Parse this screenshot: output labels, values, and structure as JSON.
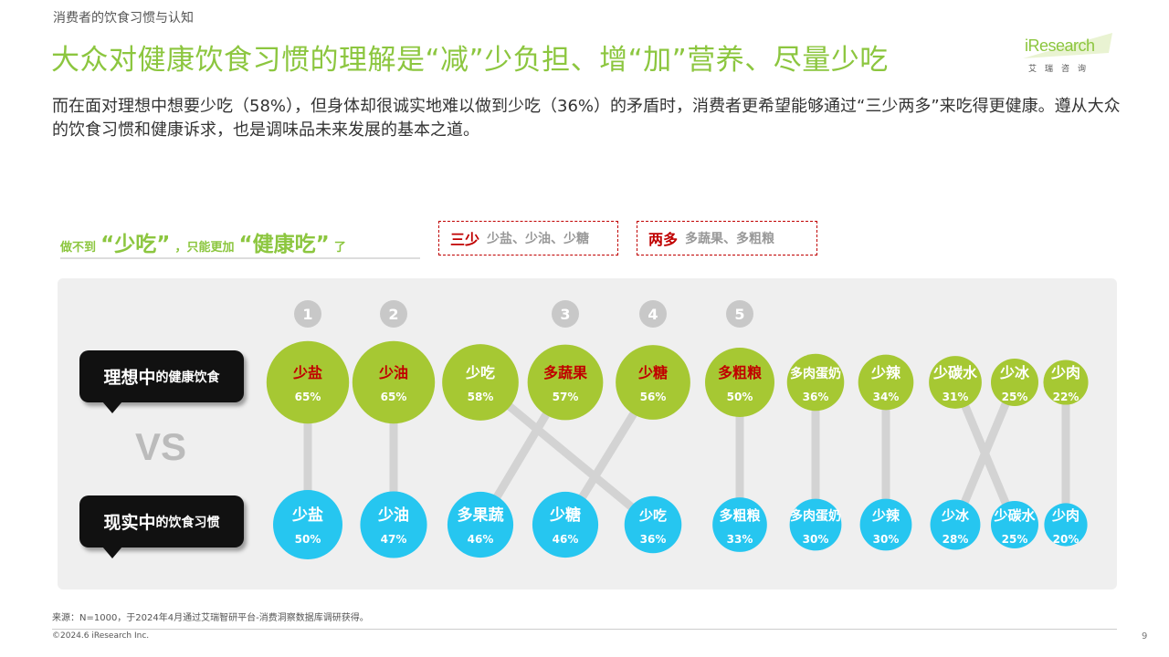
{
  "header": {
    "section_label": "消费者的饮食习惯与认知",
    "title": "大众对健康饮食习惯的理解是“减”少负担、增“加”营养、尽量少吃",
    "logo_word": "iResearch",
    "logo_sub": "艾瑞咨询"
  },
  "intro": "而在面对理想中想要少吃（58%），但身体却很诚实地难以做到少吃（36%）的矛盾时，消费者更希望能够通过“三少两多”来吃得更健康。遵从大众的饮食习惯和健康诉求，也是调味品未来发展的基本之道。",
  "tagline": {
    "part1": "做不到",
    "quote1": "“少吃”",
    "part2": "，只能更加",
    "quote2": "“健康吃”",
    "part3": "了"
  },
  "three_less": {
    "key": "三少",
    "items": "少盐、少油、少糖"
  },
  "two_more": {
    "key": "两多",
    "items": "多蔬果、多粗粮"
  },
  "row_labels": {
    "ideal_big": "理想中",
    "ideal_small": "的健康饮食",
    "real_big": "现实中",
    "real_small": "的饮食习惯",
    "vs": "VS"
  },
  "chart_data": {
    "type": "bump",
    "series": [
      {
        "name": "理想中的健康饮食",
        "items": [
          {
            "label": "少盐",
            "value": 65,
            "display": "65%",
            "rank": "1",
            "highlight": true
          },
          {
            "label": "少油",
            "value": 65,
            "display": "65%",
            "rank": "2",
            "highlight": true
          },
          {
            "label": "少吃",
            "value": 58,
            "display": "58%",
            "rank": "",
            "highlight": false
          },
          {
            "label": "多蔬果",
            "value": 57,
            "display": "57%",
            "rank": "3",
            "highlight": true
          },
          {
            "label": "少糖",
            "value": 56,
            "display": "56%",
            "rank": "4",
            "highlight": true
          },
          {
            "label": "多粗粮",
            "value": 50,
            "display": "50%",
            "rank": "5",
            "highlight": true
          },
          {
            "label": "多肉蛋奶",
            "value": 36,
            "display": "36%",
            "rank": "",
            "highlight": false
          },
          {
            "label": "少辣",
            "value": 34,
            "display": "34%",
            "rank": "",
            "highlight": false
          },
          {
            "label": "少碳水",
            "value": 31,
            "display": "31%",
            "rank": "",
            "highlight": false
          },
          {
            "label": "少冰",
            "value": 25,
            "display": "25%",
            "rank": "",
            "highlight": false
          },
          {
            "label": "少肉",
            "value": 22,
            "display": "22%",
            "rank": "",
            "highlight": false
          }
        ]
      },
      {
        "name": "现实中的饮食习惯",
        "items": [
          {
            "label": "少盐",
            "value": 50,
            "display": "50%"
          },
          {
            "label": "少油",
            "value": 47,
            "display": "47%"
          },
          {
            "label": "多果蔬",
            "value": 46,
            "display": "46%"
          },
          {
            "label": "少糖",
            "value": 46,
            "display": "46%"
          },
          {
            "label": "少吃",
            "value": 36,
            "display": "36%"
          },
          {
            "label": "多粗粮",
            "value": 33,
            "display": "33%"
          },
          {
            "label": "多肉蛋奶",
            "value": 30,
            "display": "30%"
          },
          {
            "label": "少辣",
            "value": 30,
            "display": "30%"
          },
          {
            "label": "少冰",
            "value": 28,
            "display": "28%"
          },
          {
            "label": "少碳水",
            "value": 25,
            "display": "25%"
          },
          {
            "label": "少肉",
            "value": 20,
            "display": "20%"
          }
        ]
      }
    ],
    "links": [
      [
        0,
        0
      ],
      [
        1,
        1
      ],
      [
        2,
        4
      ],
      [
        3,
        2
      ],
      [
        4,
        3
      ],
      [
        5,
        5
      ],
      [
        6,
        6
      ],
      [
        7,
        7
      ],
      [
        8,
        9
      ],
      [
        9,
        8
      ],
      [
        10,
        10
      ]
    ],
    "colors": {
      "ideal": "#a6c833",
      "real": "#26c6f0",
      "highlight_text": "#c00000",
      "text": "#ffffff",
      "link": "#d3d3d3",
      "rank_badge": "#c8c8c8"
    }
  },
  "footer": {
    "source": "来源：N=1000，于2024年4月通过艾瑞智研平台-消费洞察数据库调研获得。",
    "copyright": "©2024.6 iResearch Inc.",
    "page_number": "9"
  }
}
